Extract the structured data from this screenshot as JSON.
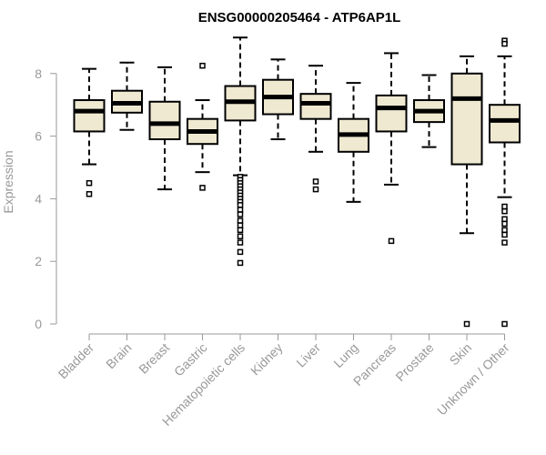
{
  "chart_data": {
    "type": "boxplot",
    "title": "ENSG00000205464 - ATP6AP1L",
    "xlabel": "",
    "ylabel": "Expression",
    "ylim": [
      0,
      9.1
    ],
    "yticks": [
      0,
      2,
      4,
      6,
      8
    ],
    "grid": false,
    "legend": "none",
    "box_fill": "#efe9d2",
    "box_stroke": "#000000",
    "categories": [
      "Bladder",
      "Brain",
      "Breast",
      "Gastric",
      "Hematopoietic cells",
      "Kidney",
      "Liver",
      "Lung",
      "Pancreas",
      "Prostate",
      "Skin",
      "Unknown / Other"
    ],
    "boxes": [
      {
        "category": "Bladder",
        "whisker_low": 5.1,
        "q1": 6.15,
        "median": 6.8,
        "q3": 7.15,
        "whisker_high": 8.15,
        "outliers": [
          4.5,
          4.15
        ]
      },
      {
        "category": "Brain",
        "whisker_low": 6.2,
        "q1": 6.75,
        "median": 7.05,
        "q3": 7.45,
        "whisker_high": 8.35,
        "outliers": []
      },
      {
        "category": "Breast",
        "whisker_low": 4.3,
        "q1": 5.9,
        "median": 6.4,
        "q3": 7.1,
        "whisker_high": 8.2,
        "outliers": []
      },
      {
        "category": "Gastric",
        "whisker_low": 4.85,
        "q1": 5.75,
        "median": 6.15,
        "q3": 6.55,
        "whisker_high": 7.15,
        "outliers": [
          8.25,
          4.35
        ]
      },
      {
        "category": "Hematopoietic cells",
        "whisker_low": 4.75,
        "q1": 6.5,
        "median": 7.1,
        "q3": 7.6,
        "whisker_high": 9.15,
        "outliers": [
          4.7,
          4.6,
          4.5,
          4.4,
          4.3,
          4.2,
          4.1,
          4.0,
          3.9,
          3.8,
          3.65,
          3.5,
          3.3,
          3.15,
          3.0,
          2.8,
          2.6,
          2.3,
          1.95
        ]
      },
      {
        "category": "Kidney",
        "whisker_low": 5.9,
        "q1": 6.7,
        "median": 7.25,
        "q3": 7.8,
        "whisker_high": 8.45,
        "outliers": []
      },
      {
        "category": "Liver",
        "whisker_low": 5.5,
        "q1": 6.55,
        "median": 7.05,
        "q3": 7.35,
        "whisker_high": 8.25,
        "outliers": [
          4.55,
          4.3
        ]
      },
      {
        "category": "Lung",
        "whisker_low": 3.9,
        "q1": 5.5,
        "median": 6.05,
        "q3": 6.55,
        "whisker_high": 7.7,
        "outliers": []
      },
      {
        "category": "Pancreas",
        "whisker_low": 4.45,
        "q1": 6.15,
        "median": 6.9,
        "q3": 7.3,
        "whisker_high": 8.65,
        "outliers": [
          2.65
        ]
      },
      {
        "category": "Prostate",
        "whisker_low": 5.65,
        "q1": 6.45,
        "median": 6.8,
        "q3": 7.15,
        "whisker_high": 7.95,
        "outliers": []
      },
      {
        "category": "Skin",
        "whisker_low": 2.9,
        "q1": 5.1,
        "median": 7.2,
        "q3": 8.0,
        "whisker_high": 8.55,
        "outliers": [
          0.0
        ]
      },
      {
        "category": "Unknown / Other",
        "whisker_low": 4.05,
        "q1": 5.8,
        "median": 6.5,
        "q3": 7.0,
        "whisker_high": 8.55,
        "outliers": [
          9.05,
          8.95,
          3.75,
          3.6,
          3.35,
          3.2,
          3.0,
          2.85,
          2.6,
          0.0
        ]
      }
    ]
  }
}
